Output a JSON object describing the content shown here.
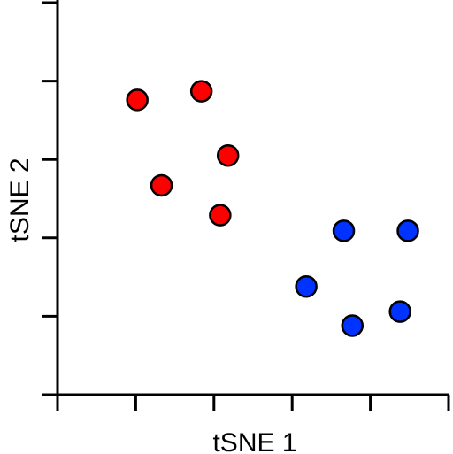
{
  "chart_data": {
    "type": "scatter",
    "title": "",
    "xlabel": "tSNE 1",
    "ylabel": "tSNE 2",
    "xlim": [
      0,
      5
    ],
    "ylim": [
      0,
      5
    ],
    "xticks": [
      0,
      1,
      2,
      3,
      4,
      5
    ],
    "yticks": [
      0,
      1,
      2,
      3,
      4,
      5
    ],
    "show_tick_labels": false,
    "grid": false,
    "legend": "none",
    "series": [
      {
        "color": "#ff0000",
        "points": [
          {
            "x": 1.02,
            "y": 3.76
          },
          {
            "x": 1.84,
            "y": 3.87
          },
          {
            "x": 2.18,
            "y": 3.05
          },
          {
            "x": 1.33,
            "y": 2.67
          },
          {
            "x": 2.08,
            "y": 2.29
          }
        ]
      },
      {
        "color": "#0033ff",
        "points": [
          {
            "x": 3.66,
            "y": 2.09
          },
          {
            "x": 4.48,
            "y": 2.09
          },
          {
            "x": 3.18,
            "y": 1.38
          },
          {
            "x": 4.38,
            "y": 1.06
          },
          {
            "x": 3.77,
            "y": 0.88
          }
        ]
      }
    ]
  }
}
